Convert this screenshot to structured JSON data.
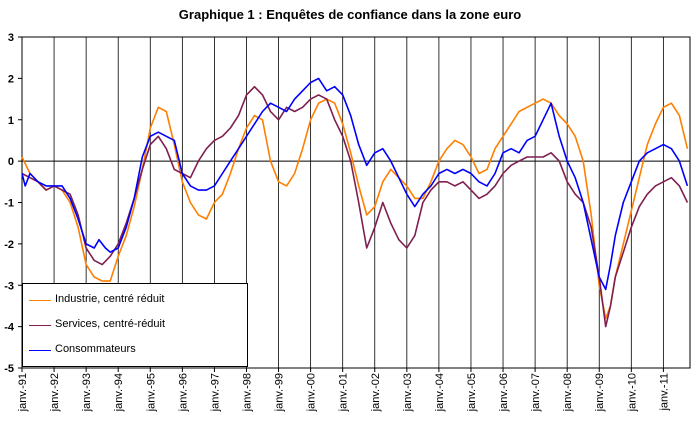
{
  "title": "Graphique 1 : Enquêtes de confiance dans la zone euro",
  "chart_data": {
    "type": "line",
    "title": "Graphique 1 : Enquêtes de confiance dans la zone euro",
    "xlabel": "",
    "ylabel": "",
    "ylim": [
      -5,
      3
    ],
    "yticks": [
      -5,
      -4,
      -3,
      -2,
      -1,
      0,
      1,
      2,
      3
    ],
    "xlim": [
      1991.0,
      2011.83
    ],
    "xtick_labels": [
      "janv.-91",
      "janv.-92",
      "janv.-93",
      "janv.-94",
      "janv.-95",
      "janv.-96",
      "janv.-97",
      "janv.-98",
      "janv.-99",
      "janv.-00",
      "janv.-01",
      "janv.-02",
      "janv.-03",
      "janv.-04",
      "janv.-05",
      "janv.-06",
      "janv.-07",
      "janv.-08",
      "janv.-09",
      "janv.-10",
      "janv.-11"
    ],
    "grid": "vertical lines at each January, horizontal line at 0",
    "legend_position": "bottom-left",
    "series": [
      {
        "name": "Industrie, centré réduit",
        "color": "#ff7f00",
        "points": [
          [
            1991.0,
            0.1
          ],
          [
            1991.25,
            -0.3
          ],
          [
            1991.5,
            -0.5
          ],
          [
            1991.75,
            -0.7
          ],
          [
            1992.0,
            -0.6
          ],
          [
            1992.25,
            -0.7
          ],
          [
            1992.5,
            -1.0
          ],
          [
            1992.75,
            -1.6
          ],
          [
            1993.0,
            -2.5
          ],
          [
            1993.25,
            -2.8
          ],
          [
            1993.5,
            -2.9
          ],
          [
            1993.75,
            -2.9
          ],
          [
            1994.0,
            -2.3
          ],
          [
            1994.25,
            -1.8
          ],
          [
            1994.5,
            -1.1
          ],
          [
            1994.75,
            -0.2
          ],
          [
            1995.0,
            0.8
          ],
          [
            1995.25,
            1.3
          ],
          [
            1995.5,
            1.2
          ],
          [
            1995.75,
            0.4
          ],
          [
            1996.0,
            -0.5
          ],
          [
            1996.25,
            -1.0
          ],
          [
            1996.5,
            -1.3
          ],
          [
            1996.75,
            -1.4
          ],
          [
            1997.0,
            -1.0
          ],
          [
            1997.25,
            -0.8
          ],
          [
            1997.5,
            -0.3
          ],
          [
            1997.75,
            0.3
          ],
          [
            1998.0,
            0.8
          ],
          [
            1998.25,
            1.1
          ],
          [
            1998.5,
            1.0
          ],
          [
            1998.75,
            0.0
          ],
          [
            1999.0,
            -0.5
          ],
          [
            1999.25,
            -0.6
          ],
          [
            1999.5,
            -0.3
          ],
          [
            1999.75,
            0.3
          ],
          [
            2000.0,
            1.0
          ],
          [
            2000.25,
            1.4
          ],
          [
            2000.5,
            1.5
          ],
          [
            2000.75,
            1.4
          ],
          [
            2001.0,
            0.9
          ],
          [
            2001.25,
            0.2
          ],
          [
            2001.5,
            -0.6
          ],
          [
            2001.75,
            -1.3
          ],
          [
            2002.0,
            -1.1
          ],
          [
            2002.25,
            -0.5
          ],
          [
            2002.5,
            -0.2
          ],
          [
            2002.75,
            -0.4
          ],
          [
            2003.0,
            -0.6
          ],
          [
            2003.25,
            -0.9
          ],
          [
            2003.5,
            -0.9
          ],
          [
            2003.75,
            -0.5
          ],
          [
            2004.0,
            0.0
          ],
          [
            2004.25,
            0.3
          ],
          [
            2004.5,
            0.5
          ],
          [
            2004.75,
            0.4
          ],
          [
            2005.0,
            0.1
          ],
          [
            2005.25,
            -0.3
          ],
          [
            2005.5,
            -0.2
          ],
          [
            2005.75,
            0.3
          ],
          [
            2006.0,
            0.6
          ],
          [
            2006.25,
            0.9
          ],
          [
            2006.5,
            1.2
          ],
          [
            2006.75,
            1.3
          ],
          [
            2007.0,
            1.4
          ],
          [
            2007.25,
            1.5
          ],
          [
            2007.5,
            1.4
          ],
          [
            2007.75,
            1.1
          ],
          [
            2008.0,
            0.9
          ],
          [
            2008.25,
            0.6
          ],
          [
            2008.5,
            0.0
          ],
          [
            2008.75,
            -1.3
          ],
          [
            2009.0,
            -3.0
          ],
          [
            2009.2,
            -3.8
          ],
          [
            2009.35,
            -3.5
          ],
          [
            2009.5,
            -2.8
          ],
          [
            2009.75,
            -2.0
          ],
          [
            2010.0,
            -1.2
          ],
          [
            2010.25,
            -0.4
          ],
          [
            2010.5,
            0.4
          ],
          [
            2010.75,
            0.9
          ],
          [
            2011.0,
            1.3
          ],
          [
            2011.25,
            1.4
          ],
          [
            2011.5,
            1.1
          ],
          [
            2011.75,
            0.3
          ]
        ]
      },
      {
        "name": "Services, centré-réduit",
        "color": "#7f1f4f",
        "points": [
          [
            1991.0,
            -0.3
          ],
          [
            1991.25,
            -0.4
          ],
          [
            1991.5,
            -0.5
          ],
          [
            1991.75,
            -0.7
          ],
          [
            1992.0,
            -0.6
          ],
          [
            1992.25,
            -0.7
          ],
          [
            1992.5,
            -0.8
          ],
          [
            1992.75,
            -1.3
          ],
          [
            1993.0,
            -2.1
          ],
          [
            1993.25,
            -2.4
          ],
          [
            1993.5,
            -2.5
          ],
          [
            1993.75,
            -2.3
          ],
          [
            1994.0,
            -2.0
          ],
          [
            1994.25,
            -1.5
          ],
          [
            1994.5,
            -0.9
          ],
          [
            1994.75,
            -0.2
          ],
          [
            1995.0,
            0.4
          ],
          [
            1995.25,
            0.6
          ],
          [
            1995.5,
            0.3
          ],
          [
            1995.75,
            -0.2
          ],
          [
            1996.0,
            -0.3
          ],
          [
            1996.25,
            -0.4
          ],
          [
            1996.5,
            0.0
          ],
          [
            1996.75,
            0.3
          ],
          [
            1997.0,
            0.5
          ],
          [
            1997.25,
            0.6
          ],
          [
            1997.5,
            0.8
          ],
          [
            1997.75,
            1.1
          ],
          [
            1998.0,
            1.6
          ],
          [
            1998.25,
            1.8
          ],
          [
            1998.5,
            1.6
          ],
          [
            1998.75,
            1.2
          ],
          [
            1999.0,
            1.0
          ],
          [
            1999.25,
            1.3
          ],
          [
            1999.5,
            1.2
          ],
          [
            1999.75,
            1.3
          ],
          [
            2000.0,
            1.5
          ],
          [
            2000.25,
            1.6
          ],
          [
            2000.5,
            1.5
          ],
          [
            2000.75,
            1.0
          ],
          [
            2001.0,
            0.6
          ],
          [
            2001.25,
            0.0
          ],
          [
            2001.5,
            -1.0
          ],
          [
            2001.75,
            -2.1
          ],
          [
            2002.0,
            -1.6
          ],
          [
            2002.25,
            -1.0
          ],
          [
            2002.5,
            -1.5
          ],
          [
            2002.75,
            -1.9
          ],
          [
            2003.0,
            -2.1
          ],
          [
            2003.25,
            -1.8
          ],
          [
            2003.5,
            -1.0
          ],
          [
            2003.75,
            -0.7
          ],
          [
            2004.0,
            -0.5
          ],
          [
            2004.25,
            -0.5
          ],
          [
            2004.5,
            -0.6
          ],
          [
            2004.75,
            -0.5
          ],
          [
            2005.0,
            -0.7
          ],
          [
            2005.25,
            -0.9
          ],
          [
            2005.5,
            -0.8
          ],
          [
            2005.75,
            -0.6
          ],
          [
            2006.0,
            -0.3
          ],
          [
            2006.25,
            -0.1
          ],
          [
            2006.5,
            0.0
          ],
          [
            2006.75,
            0.1
          ],
          [
            2007.0,
            0.1
          ],
          [
            2007.25,
            0.1
          ],
          [
            2007.5,
            0.2
          ],
          [
            2007.75,
            0.0
          ],
          [
            2008.0,
            -0.5
          ],
          [
            2008.25,
            -0.8
          ],
          [
            2008.5,
            -1.0
          ],
          [
            2008.75,
            -1.6
          ],
          [
            2009.0,
            -2.8
          ],
          [
            2009.2,
            -4.0
          ],
          [
            2009.35,
            -3.5
          ],
          [
            2009.5,
            -2.8
          ],
          [
            2009.75,
            -2.2
          ],
          [
            2010.0,
            -1.6
          ],
          [
            2010.25,
            -1.1
          ],
          [
            2010.5,
            -0.8
          ],
          [
            2010.75,
            -0.6
          ],
          [
            2011.0,
            -0.5
          ],
          [
            2011.25,
            -0.4
          ],
          [
            2011.5,
            -0.6
          ],
          [
            2011.75,
            -1.0
          ]
        ]
      },
      {
        "name": "Consommateurs",
        "color": "#0000ff",
        "points": [
          [
            1991.0,
            -0.3
          ],
          [
            1991.1,
            -0.6
          ],
          [
            1991.25,
            -0.3
          ],
          [
            1991.5,
            -0.5
          ],
          [
            1991.75,
            -0.6
          ],
          [
            1992.0,
            -0.6
          ],
          [
            1992.25,
            -0.6
          ],
          [
            1992.5,
            -0.9
          ],
          [
            1992.75,
            -1.4
          ],
          [
            1993.0,
            -2.0
          ],
          [
            1993.25,
            -2.1
          ],
          [
            1993.4,
            -1.9
          ],
          [
            1993.6,
            -2.1
          ],
          [
            1993.75,
            -2.2
          ],
          [
            1994.0,
            -2.1
          ],
          [
            1994.25,
            -1.6
          ],
          [
            1994.5,
            -0.9
          ],
          [
            1994.75,
            0.1
          ],
          [
            1995.0,
            0.6
          ],
          [
            1995.25,
            0.7
          ],
          [
            1995.5,
            0.6
          ],
          [
            1995.75,
            0.5
          ],
          [
            1996.0,
            -0.3
          ],
          [
            1996.25,
            -0.6
          ],
          [
            1996.5,
            -0.7
          ],
          [
            1996.75,
            -0.7
          ],
          [
            1997.0,
            -0.6
          ],
          [
            1997.25,
            -0.3
          ],
          [
            1997.5,
            0.0
          ],
          [
            1997.75,
            0.3
          ],
          [
            1998.0,
            0.6
          ],
          [
            1998.25,
            0.9
          ],
          [
            1998.5,
            1.2
          ],
          [
            1998.75,
            1.4
          ],
          [
            1999.0,
            1.3
          ],
          [
            1999.25,
            1.2
          ],
          [
            1999.5,
            1.5
          ],
          [
            1999.75,
            1.7
          ],
          [
            2000.0,
            1.9
          ],
          [
            2000.25,
            2.0
          ],
          [
            2000.5,
            1.7
          ],
          [
            2000.75,
            1.8
          ],
          [
            2001.0,
            1.6
          ],
          [
            2001.25,
            1.1
          ],
          [
            2001.5,
            0.4
          ],
          [
            2001.75,
            -0.1
          ],
          [
            2002.0,
            0.2
          ],
          [
            2002.25,
            0.3
          ],
          [
            2002.5,
            0.0
          ],
          [
            2002.75,
            -0.4
          ],
          [
            2003.0,
            -0.8
          ],
          [
            2003.25,
            -1.1
          ],
          [
            2003.5,
            -0.8
          ],
          [
            2003.75,
            -0.6
          ],
          [
            2004.0,
            -0.3
          ],
          [
            2004.25,
            -0.2
          ],
          [
            2004.5,
            -0.3
          ],
          [
            2004.75,
            -0.2
          ],
          [
            2005.0,
            -0.3
          ],
          [
            2005.25,
            -0.5
          ],
          [
            2005.5,
            -0.6
          ],
          [
            2005.75,
            -0.3
          ],
          [
            2006.0,
            0.2
          ],
          [
            2006.25,
            0.3
          ],
          [
            2006.5,
            0.2
          ],
          [
            2006.75,
            0.5
          ],
          [
            2007.0,
            0.6
          ],
          [
            2007.25,
            1.0
          ],
          [
            2007.5,
            1.4
          ],
          [
            2007.75,
            0.6
          ],
          [
            2008.0,
            0.0
          ],
          [
            2008.25,
            -0.4
          ],
          [
            2008.5,
            -1.0
          ],
          [
            2008.75,
            -1.9
          ],
          [
            2009.0,
            -2.8
          ],
          [
            2009.2,
            -3.1
          ],
          [
            2009.35,
            -2.5
          ],
          [
            2009.5,
            -1.8
          ],
          [
            2009.75,
            -1.0
          ],
          [
            2010.0,
            -0.5
          ],
          [
            2010.25,
            0.0
          ],
          [
            2010.5,
            0.2
          ],
          [
            2010.75,
            0.3
          ],
          [
            2011.0,
            0.4
          ],
          [
            2011.25,
            0.3
          ],
          [
            2011.5,
            0.0
          ],
          [
            2011.75,
            -0.6
          ]
        ]
      }
    ]
  }
}
